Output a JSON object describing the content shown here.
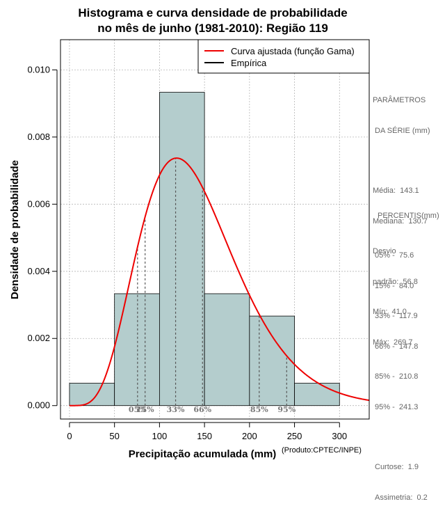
{
  "chart_data": {
    "type": "bar",
    "title_lines": [
      "Histograma e curva densidade de probabilidade",
      "no mês de junho (1981-2010): Região 119"
    ],
    "xlabel": "Precipitação acumulada (mm)",
    "ylabel": "Densidade de probabilidade",
    "xlim": [
      -10,
      333
    ],
    "ylim": [
      -0.0004,
      0.0109
    ],
    "x_ticks": [
      0,
      50,
      100,
      150,
      200,
      250,
      300
    ],
    "y_ticks": [
      0.0,
      0.002,
      0.004,
      0.006,
      0.008,
      0.01
    ],
    "y_tick_labels": [
      "0.000",
      "0.002",
      "0.004",
      "0.006",
      "0.008",
      "0.010"
    ],
    "grid": true,
    "legend_position": "top-right",
    "histogram": {
      "name": "Empírica",
      "bins": [
        [
          0,
          50
        ],
        [
          50,
          100
        ],
        [
          100,
          150
        ],
        [
          150,
          200
        ],
        [
          200,
          250
        ],
        [
          250,
          300
        ]
      ],
      "density": [
        0.000667,
        0.003333,
        0.009333,
        0.003333,
        0.002667,
        0.000667
      ],
      "fill": "#b4cdcd",
      "edge": "#000000"
    },
    "gamma_curve": {
      "name": "Curva ajustada (função Gama)",
      "shape": 6.0,
      "scale": 23.8,
      "color": "#ee0000"
    },
    "percentile_markers": [
      {
        "label": "05%",
        "x": 75.6
      },
      {
        "label": "15%",
        "x": 84.0
      },
      {
        "label": "33%",
        "x": 117.9
      },
      {
        "label": "66%",
        "x": 147.8
      },
      {
        "label": "85%",
        "x": 210.8
      },
      {
        "label": "95%",
        "x": 241.3
      }
    ]
  },
  "stats_panel": {
    "heading_lines": [
      "PARÂMETROS",
      " DA SÉRIE (mm)"
    ],
    "lines": [
      "Média:  143.1",
      "Mediana:  130.7",
      "Desvio",
      "padrão:  56.8",
      "Mín:  41.0",
      "Máx:  269.7"
    ]
  },
  "percentis_panel": {
    "heading": "PERCENTIS(mm)",
    "lines": [
      "05% -  75.6",
      "15% -  84.0",
      "33% -  117.9",
      "66% -  147.8",
      "85% -  210.8",
      "95% -  241.3"
    ]
  },
  "shape_panel": {
    "lines": [
      "Curtose:  1.9",
      "Assimetria:  0.2"
    ]
  },
  "credit": "(Produto:CPTEC/INPE)"
}
